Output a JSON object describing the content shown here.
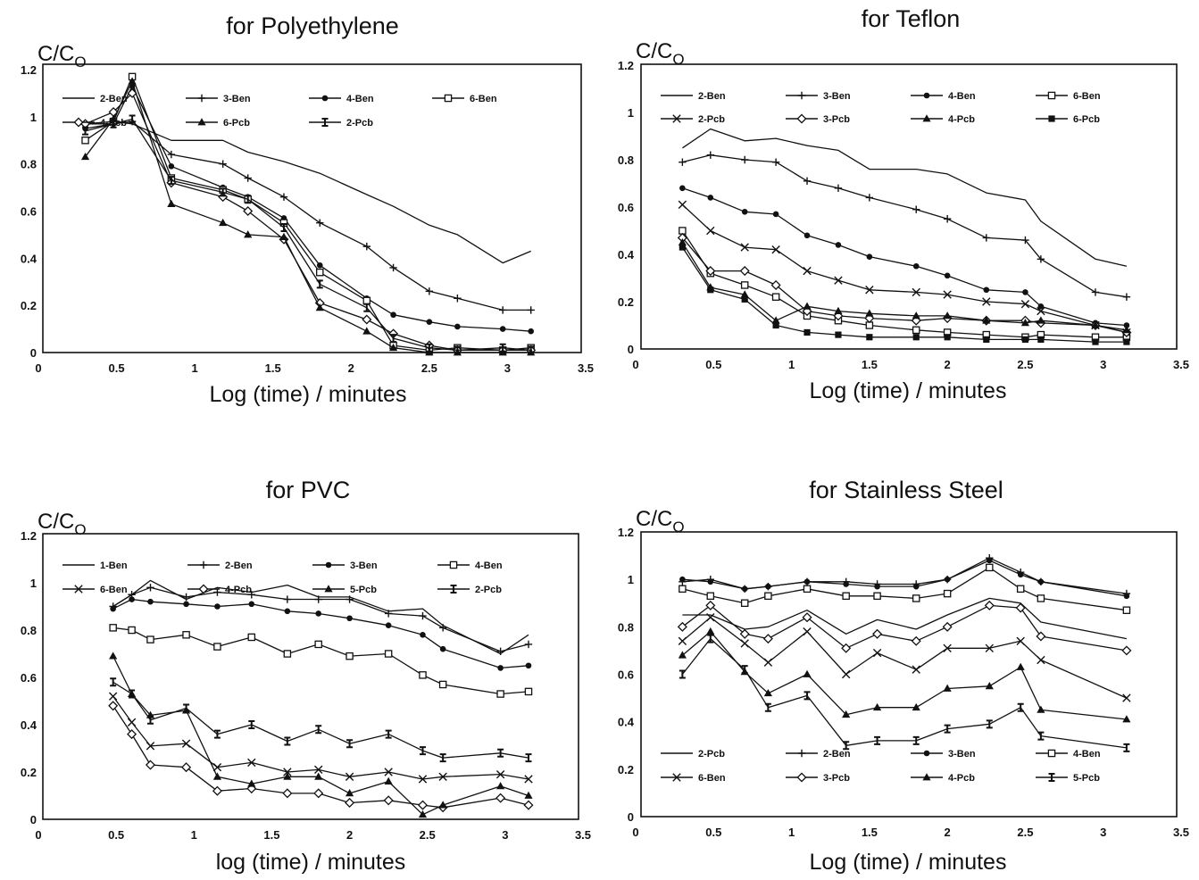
{
  "chart_data": [
    {
      "type": "line",
      "title": "for Polyethylene",
      "xlabel": "Log (time) / minutes",
      "ylabel": "C/C",
      "ylabel_sub": "O",
      "xlim": [
        0,
        3.5
      ],
      "ylim": [
        0,
        1.2
      ],
      "xticks": [
        "0",
        "0.5",
        "1",
        "1.5",
        "2",
        "2.5",
        "3",
        "3.5"
      ],
      "yticks": [
        "0",
        "0.2",
        "0.4",
        "0.6",
        "0.8",
        "1",
        "1.2"
      ],
      "legend_columns": 4,
      "x": [
        0.3,
        0.48,
        0.6,
        0.85,
        1.18,
        1.34,
        1.57,
        1.8,
        2.1,
        2.27,
        2.5,
        2.68,
        2.97,
        3.15
      ],
      "series": [
        {
          "name": "2-Ben",
          "marker": "none",
          "values": [
            0.97,
            0.98,
            0.97,
            0.9,
            0.9,
            0.85,
            0.81,
            0.76,
            0.67,
            0.62,
            0.54,
            0.5,
            0.38,
            0.43
          ]
        },
        {
          "name": "3-Ben",
          "marker": "plus",
          "values": [
            0.97,
            0.97,
            0.98,
            0.84,
            0.8,
            0.74,
            0.66,
            0.55,
            0.45,
            0.36,
            0.26,
            0.23,
            0.18,
            0.18
          ]
        },
        {
          "name": "4-Ben",
          "marker": "dot",
          "values": [
            0.95,
            0.97,
            1.13,
            0.79,
            0.7,
            0.66,
            0.57,
            0.37,
            0.23,
            0.16,
            0.13,
            0.11,
            0.1,
            0.09
          ]
        },
        {
          "name": "6-Ben",
          "marker": "square",
          "values": [
            0.9,
            0.98,
            1.17,
            0.74,
            0.69,
            0.65,
            0.55,
            0.34,
            0.22,
            0.03,
            0.01,
            0.02,
            0.01,
            0.02
          ]
        },
        {
          "name": "4-Pcb",
          "marker": "diamond",
          "values": [
            0.97,
            1.02,
            1.1,
            0.72,
            0.66,
            0.6,
            0.48,
            0.21,
            0.14,
            0.08,
            0.03,
            0.01,
            0.01,
            0.01
          ]
        },
        {
          "name": "6-Pcb",
          "marker": "triangle",
          "values": [
            0.83,
            0.99,
            1.15,
            0.63,
            0.55,
            0.5,
            0.49,
            0.19,
            0.09,
            0.02,
            0.0,
            0.0,
            0.0,
            0.0
          ]
        },
        {
          "name": "2-Pcb",
          "marker": "ibeam",
          "values": [
            0.94,
            0.97,
            0.99,
            0.73,
            0.68,
            0.65,
            0.53,
            0.29,
            0.19,
            0.06,
            0.02,
            0.01,
            0.02,
            0.01
          ]
        }
      ]
    },
    {
      "type": "line",
      "title": "for Teflon",
      "xlabel": "Log (time) / minutes",
      "ylabel": "C/C",
      "ylabel_sub": "O",
      "xlim": [
        0,
        3.5
      ],
      "ylim": [
        0,
        1.2
      ],
      "xticks": [
        "0",
        "0.5",
        "1",
        "1.5",
        "2",
        "2.5",
        "3",
        "3.5"
      ],
      "yticks": [
        "0",
        "0.2",
        "0.4",
        "0.6",
        "0.8",
        "1",
        "1.2"
      ],
      "legend_columns": 4,
      "x": [
        0.3,
        0.48,
        0.7,
        0.9,
        1.1,
        1.3,
        1.5,
        1.8,
        2.0,
        2.25,
        2.5,
        2.6,
        2.95,
        3.15
      ],
      "series": [
        {
          "name": "2-Ben",
          "marker": "none",
          "values": [
            0.85,
            0.93,
            0.88,
            0.89,
            0.86,
            0.84,
            0.76,
            0.76,
            0.74,
            0.66,
            0.63,
            0.54,
            0.38,
            0.35
          ]
        },
        {
          "name": "3-Ben",
          "marker": "plus",
          "values": [
            0.79,
            0.82,
            0.8,
            0.79,
            0.71,
            0.68,
            0.64,
            0.59,
            0.55,
            0.47,
            0.46,
            0.38,
            0.24,
            0.22
          ]
        },
        {
          "name": "4-Ben",
          "marker": "dot",
          "values": [
            0.68,
            0.64,
            0.58,
            0.57,
            0.48,
            0.44,
            0.39,
            0.35,
            0.31,
            0.25,
            0.24,
            0.18,
            0.11,
            0.1
          ]
        },
        {
          "name": "6-Ben",
          "marker": "square",
          "values": [
            0.5,
            0.32,
            0.27,
            0.22,
            0.14,
            0.12,
            0.1,
            0.08,
            0.07,
            0.06,
            0.05,
            0.06,
            0.05,
            0.05
          ]
        },
        {
          "name": "2-Pcb",
          "marker": "x",
          "values": [
            0.61,
            0.5,
            0.43,
            0.42,
            0.33,
            0.29,
            0.25,
            0.24,
            0.23,
            0.2,
            0.19,
            0.16,
            0.1,
            0.07
          ]
        },
        {
          "name": "3-Pcb",
          "marker": "diamond",
          "values": [
            0.47,
            0.33,
            0.33,
            0.27,
            0.16,
            0.14,
            0.13,
            0.12,
            0.13,
            0.12,
            0.12,
            0.11,
            0.1,
            0.07
          ]
        },
        {
          "name": "4-Pcb",
          "marker": "triangle",
          "values": [
            0.45,
            0.26,
            0.23,
            0.12,
            0.18,
            0.16,
            0.15,
            0.14,
            0.14,
            0.12,
            0.11,
            0.12,
            0.1,
            0.08
          ]
        },
        {
          "name": "6-Pcb",
          "marker": "filled-square",
          "values": [
            0.43,
            0.25,
            0.21,
            0.1,
            0.07,
            0.06,
            0.05,
            0.05,
            0.05,
            0.04,
            0.04,
            0.04,
            0.03,
            0.03
          ]
        }
      ]
    },
    {
      "type": "line",
      "title": "for PVC",
      "xlabel": "log (time) / minutes",
      "ylabel": "C/C",
      "ylabel_sub": "O",
      "xlim": [
        0,
        3.5
      ],
      "ylim": [
        0,
        1.2
      ],
      "xticks": [
        "0",
        "0.5",
        "1",
        "1.5",
        "2",
        "2.5",
        "3",
        "3.5"
      ],
      "yticks": [
        "0",
        "0.2",
        "0.4",
        "0.6",
        "0.8",
        "1",
        "1.2"
      ],
      "legend_columns": 4,
      "x": [
        0.48,
        0.6,
        0.72,
        0.95,
        1.15,
        1.37,
        1.6,
        1.8,
        2.0,
        2.25,
        2.47,
        2.6,
        2.97,
        3.15
      ],
      "series": [
        {
          "name": "1-Ben",
          "marker": "none",
          "values": [
            0.9,
            0.95,
            1.01,
            0.93,
            0.98,
            0.96,
            0.99,
            0.94,
            0.94,
            0.88,
            0.89,
            0.82,
            0.7,
            0.78
          ]
        },
        {
          "name": "2-Ben",
          "marker": "plus",
          "values": [
            0.9,
            0.95,
            0.98,
            0.94,
            0.96,
            0.95,
            0.93,
            0.93,
            0.93,
            0.87,
            0.86,
            0.81,
            0.71,
            0.74
          ]
        },
        {
          "name": "3-Ben",
          "marker": "dot",
          "values": [
            0.89,
            0.93,
            0.92,
            0.91,
            0.9,
            0.91,
            0.88,
            0.87,
            0.85,
            0.82,
            0.78,
            0.72,
            0.64,
            0.65
          ]
        },
        {
          "name": "4-Ben",
          "marker": "square",
          "values": [
            0.81,
            0.8,
            0.76,
            0.78,
            0.73,
            0.77,
            0.7,
            0.74,
            0.69,
            0.7,
            0.61,
            0.57,
            0.53,
            0.54
          ]
        },
        {
          "name": "6-Ben",
          "marker": "x",
          "values": [
            0.52,
            0.41,
            0.31,
            0.32,
            0.22,
            0.24,
            0.2,
            0.21,
            0.18,
            0.2,
            0.17,
            0.18,
            0.19,
            0.17
          ]
        },
        {
          "name": "4-Pcb",
          "marker": "diamond",
          "values": [
            0.48,
            0.36,
            0.23,
            0.22,
            0.12,
            0.13,
            0.11,
            0.11,
            0.07,
            0.08,
            0.06,
            0.05,
            0.09,
            0.06
          ]
        },
        {
          "name": "5-Pcb",
          "marker": "triangle",
          "values": [
            0.69,
            0.53,
            0.44,
            0.46,
            0.18,
            0.15,
            0.18,
            0.18,
            0.11,
            0.16,
            0.02,
            0.06,
            0.14,
            0.1
          ]
        },
        {
          "name": "2-Pcb",
          "marker": "ibeam",
          "values": [
            0.58,
            0.53,
            0.42,
            0.47,
            0.36,
            0.4,
            0.33,
            0.38,
            0.32,
            0.36,
            0.29,
            0.26,
            0.28,
            0.26
          ]
        }
      ]
    },
    {
      "type": "line",
      "title": "for Stainless Steel",
      "xlabel": "Log (time) / minutes",
      "ylabel": "C/C",
      "ylabel_sub": "O",
      "xlim": [
        0,
        3.5
      ],
      "ylim": [
        0,
        1.2
      ],
      "xticks": [
        "0",
        "0.5",
        "1",
        "1.5",
        "2",
        "2.5",
        "3",
        "3.5"
      ],
      "yticks": [
        "0",
        "0.2",
        "0.4",
        "0.6",
        "0.8",
        "1",
        "1.2"
      ],
      "legend_columns": 4,
      "x": [
        0.3,
        0.48,
        0.7,
        0.85,
        1.1,
        1.35,
        1.55,
        1.8,
        2.0,
        2.27,
        2.47,
        2.6,
        3.15
      ],
      "series": [
        {
          "name": "2-Pcb",
          "marker": "none",
          "values": [
            0.85,
            0.85,
            0.79,
            0.8,
            0.87,
            0.77,
            0.83,
            0.79,
            0.85,
            0.92,
            0.9,
            0.82,
            0.75
          ]
        },
        {
          "name": "2-Ben",
          "marker": "plus",
          "values": [
            0.99,
            1.0,
            0.96,
            0.97,
            0.99,
            0.99,
            0.98,
            0.98,
            1.0,
            1.09,
            1.03,
            0.99,
            0.94
          ]
        },
        {
          "name": "3-Ben",
          "marker": "dot",
          "values": [
            1.0,
            0.99,
            0.96,
            0.97,
            0.99,
            0.98,
            0.97,
            0.97,
            1.0,
            1.08,
            1.02,
            0.99,
            0.93
          ]
        },
        {
          "name": "4-Ben",
          "marker": "square",
          "values": [
            0.96,
            0.93,
            0.9,
            0.93,
            0.96,
            0.93,
            0.93,
            0.92,
            0.94,
            1.05,
            0.96,
            0.92,
            0.87
          ]
        },
        {
          "name": "6-Ben",
          "marker": "x",
          "values": [
            0.74,
            0.84,
            0.73,
            0.65,
            0.78,
            0.6,
            0.69,
            0.62,
            0.71,
            0.71,
            0.74,
            0.66,
            0.5
          ]
        },
        {
          "name": "3-Pcb",
          "marker": "diamond",
          "values": [
            0.8,
            0.89,
            0.77,
            0.75,
            0.84,
            0.71,
            0.77,
            0.74,
            0.8,
            0.89,
            0.88,
            0.76,
            0.7
          ]
        },
        {
          "name": "4-Pcb",
          "marker": "triangle",
          "values": [
            0.68,
            0.78,
            0.61,
            0.52,
            0.6,
            0.43,
            0.46,
            0.46,
            0.54,
            0.55,
            0.63,
            0.45,
            0.41
          ]
        },
        {
          "name": "5-Pcb",
          "marker": "ibeam",
          "values": [
            0.6,
            0.75,
            0.62,
            0.46,
            0.51,
            0.3,
            0.32,
            0.32,
            0.37,
            0.39,
            0.46,
            0.34,
            0.29
          ]
        }
      ]
    }
  ]
}
